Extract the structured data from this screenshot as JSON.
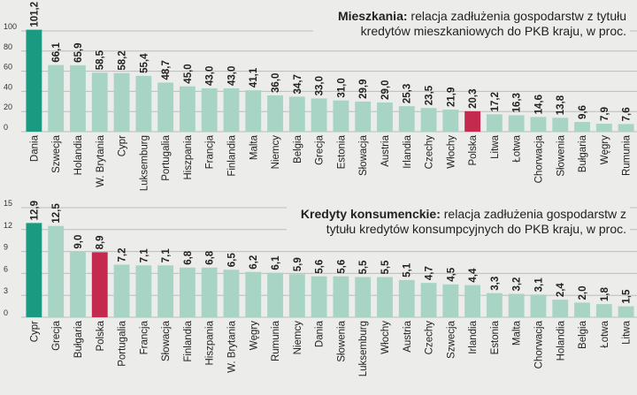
{
  "colors": {
    "default_bar": "#a8d4c6",
    "first_bar": "#1a9a80",
    "highlight_bar": "#c42a4e",
    "grid": "#bcbcbc"
  },
  "chart_data": [
    {
      "type": "bar",
      "title_bold": "Mieszkania:",
      "title_rest": "relacja zadłużenia gospodarstw z tytułu kredytów mieszkaniowych do PKB kraju, w proc.",
      "ylim": [
        0,
        100
      ],
      "yticks": [
        0,
        20,
        40,
        60,
        80,
        100
      ],
      "categories": [
        "Dania",
        "Szwecja",
        "Holandia",
        "W. Brytania",
        "Cypr",
        "Luksemburg",
        "Portugalia",
        "Hiszpania",
        "Francja",
        "Finlandia",
        "Malta",
        "Niemcy",
        "Belgia",
        "Grecja",
        "Estonia",
        "Słowacja",
        "Austria",
        "Irlandia",
        "Czechy",
        "Włochy",
        "Polska",
        "Litwa",
        "Łotwa",
        "Chorwacja",
        "Słowenia",
        "Bułgaria",
        "Węgry",
        "Rumunia"
      ],
      "values": [
        101.2,
        66.1,
        65.9,
        58.5,
        58.2,
        55.4,
        48.7,
        45.0,
        43.0,
        43.0,
        41.1,
        36.0,
        34.7,
        33.0,
        31.0,
        29.9,
        29.0,
        25.3,
        23.5,
        21.9,
        20.3,
        17.2,
        16.3,
        14.6,
        13.8,
        9.6,
        7.9,
        7.6
      ],
      "labels": [
        "101,2",
        "66,1",
        "65,9",
        "58,5",
        "58,2",
        "55,4",
        "48,7",
        "45,0",
        "43,0",
        "43,0",
        "41,1",
        "36,0",
        "34,7",
        "33,0",
        "31,0",
        "29,9",
        "29,0",
        "25,3",
        "23,5",
        "21,9",
        "20,3",
        "17,2",
        "16,3",
        "14,6",
        "13,8",
        "9,6",
        "7,9",
        "7,6"
      ],
      "highlight": "Polska"
    },
    {
      "type": "bar",
      "title_bold": "Kredyty konsumenckie:",
      "title_rest": "relacja zadłużenia gospodarstw z tytułu kredytów konsumpcyjnych do PKB kraju, w proc.",
      "ylim": [
        0,
        15
      ],
      "yticks": [
        0,
        3,
        6,
        9,
        12,
        15
      ],
      "categories": [
        "Cypr",
        "Grecja",
        "Bułgaria",
        "Polska",
        "Portugalia",
        "Francja",
        "Słowacja",
        "Finlandia",
        "Hiszpania",
        "W. Brytania",
        "Węgry",
        "Rumunia",
        "Niemcy",
        "Dania",
        "Słowenia",
        "Luksemburg",
        "Włochy",
        "Austria",
        "Czechy",
        "Szwecja",
        "Irlandia",
        "Estonia",
        "Malta",
        "Chorwacja",
        "Holandia",
        "Belgia",
        "Łotwa",
        "Litwa"
      ],
      "values": [
        12.9,
        12.5,
        9.0,
        8.9,
        7.2,
        7.1,
        7.1,
        6.8,
        6.8,
        6.5,
        6.2,
        6.1,
        5.9,
        5.6,
        5.6,
        5.5,
        5.5,
        5.1,
        4.7,
        4.5,
        4.4,
        3.3,
        3.2,
        3.1,
        2.4,
        2.0,
        1.8,
        1.5
      ],
      "labels": [
        "12,9",
        "12,5",
        "9,0",
        "8,9",
        "7,2",
        "7,1",
        "7,1",
        "6,8",
        "6,8",
        "6,5",
        "6,2",
        "6,1",
        "5,9",
        "5,6",
        "5,6",
        "5,5",
        "5,5",
        "5,1",
        "4,7",
        "4,5",
        "4,4",
        "3,3",
        "3,2",
        "3,1",
        "2,4",
        "2,0",
        "1,8",
        "1,5"
      ],
      "highlight": "Polska"
    }
  ]
}
